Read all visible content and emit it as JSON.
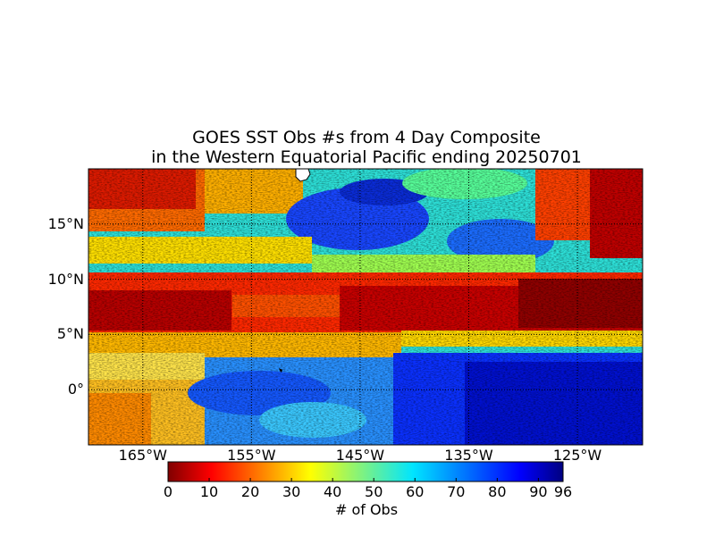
{
  "title_line1": "GOES SST Obs #s from 4 Day Composite",
  "title_line2": "in the Western Equatorial Pacific ending 20250701",
  "map": {
    "lat_range": [
      -5,
      20
    ],
    "lon_range": [
      -170,
      -119
    ],
    "lat_labels": [
      {
        "lat": 15,
        "text": "15°N"
      },
      {
        "lat": 10,
        "text": "10°N"
      },
      {
        "lat": 5,
        "text": "5°N"
      },
      {
        "lat": 0,
        "text": "0°"
      }
    ],
    "lon_labels": [
      {
        "lon": -165,
        "text": "165°W"
      },
      {
        "lon": -155,
        "text": "155°W"
      },
      {
        "lon": -145,
        "text": "145°W"
      },
      {
        "lon": -135,
        "text": "135°W"
      },
      {
        "lon": -125,
        "text": "125°W"
      }
    ],
    "gridlines": "dotted",
    "colormap": "jet"
  },
  "colorbar": {
    "label": "# of Obs",
    "min": 0,
    "max": 96,
    "ticks": [
      {
        "value": 0,
        "text": "0"
      },
      {
        "value": 10,
        "text": "10"
      },
      {
        "value": 20,
        "text": "20"
      },
      {
        "value": 30,
        "text": "30"
      },
      {
        "value": 40,
        "text": "40"
      },
      {
        "value": 50,
        "text": "50"
      },
      {
        "value": 60,
        "text": "60"
      },
      {
        "value": 70,
        "text": "70"
      },
      {
        "value": 80,
        "text": "80"
      },
      {
        "value": 90,
        "text": "90"
      },
      {
        "value": 96,
        "text": "96"
      }
    ]
  }
}
